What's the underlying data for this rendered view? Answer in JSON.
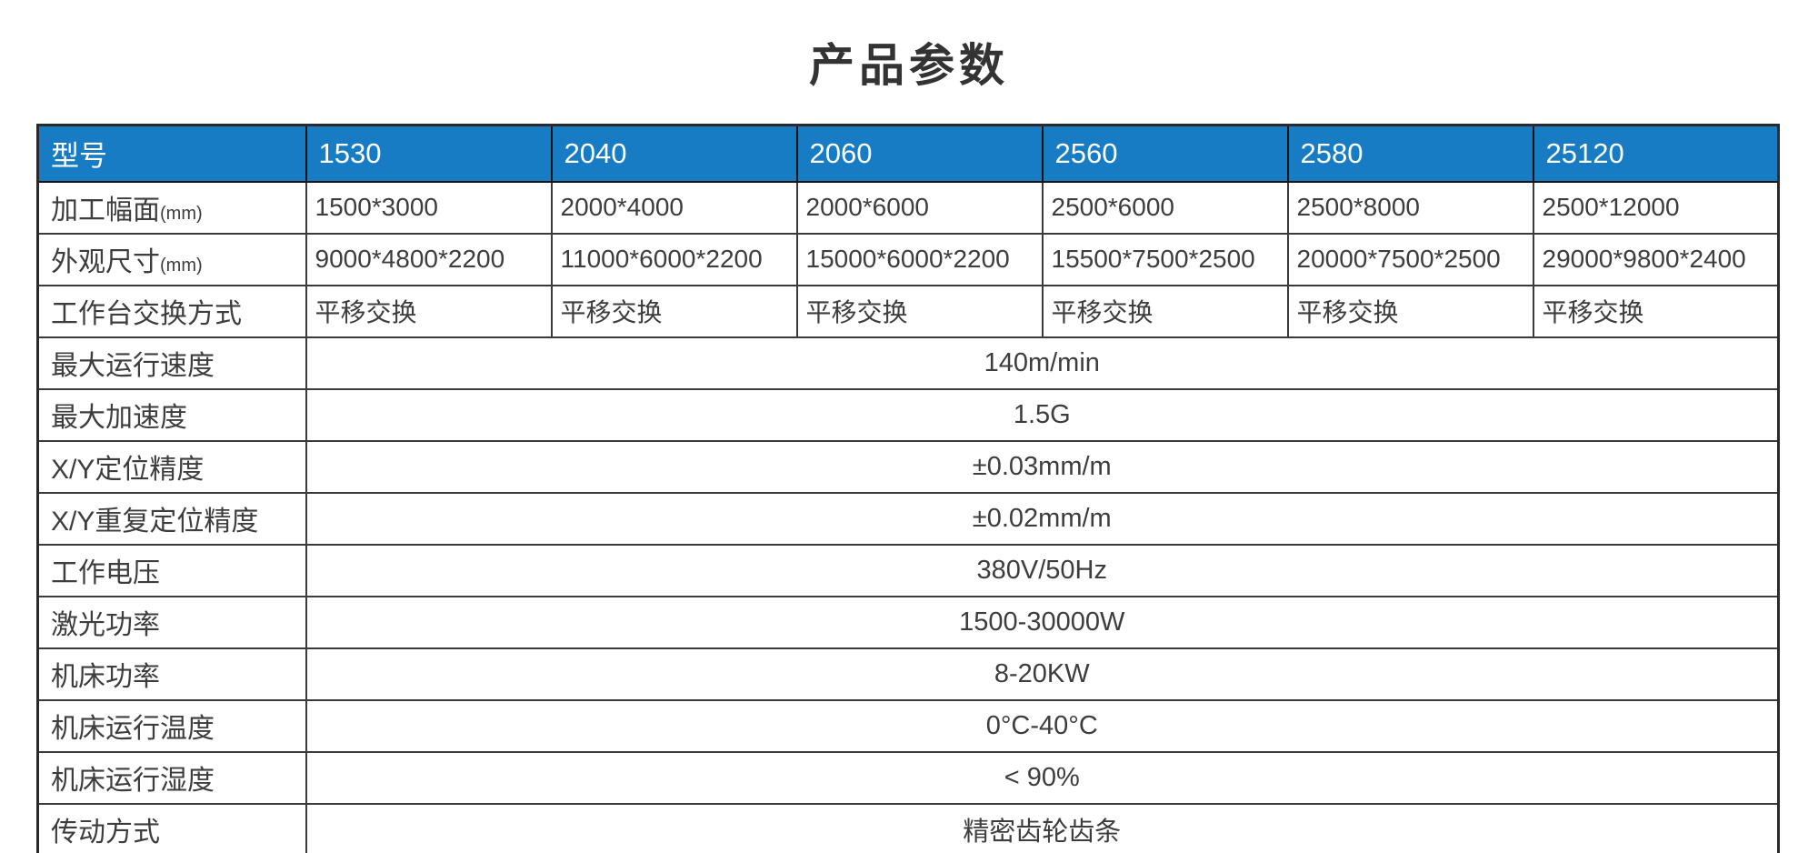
{
  "page": {
    "title": "产品参数"
  },
  "table": {
    "header": {
      "label": "型号",
      "models": [
        "1530",
        "2040",
        "2060",
        "2560",
        "2580",
        "25120"
      ]
    },
    "per_model_rows": [
      {
        "label": "加工幅面",
        "unit": "(mm)",
        "values": [
          "1500*3000",
          "2000*4000",
          "2000*6000",
          "2500*6000",
          "2500*8000",
          "2500*12000"
        ]
      },
      {
        "label": "外观尺寸",
        "unit": "(mm)",
        "values": [
          "9000*4800*2200",
          "11000*6000*2200",
          "15000*6000*2200",
          "15500*7500*2500",
          "20000*7500*2500",
          "29000*9800*2400"
        ]
      },
      {
        "label": "工作台交换方式",
        "unit": "",
        "values": [
          "平移交换",
          "平移交换",
          "平移交换",
          "平移交换",
          "平移交换",
          "平移交换"
        ]
      }
    ],
    "span_rows": [
      {
        "label": "最大运行速度",
        "value": "140m/min"
      },
      {
        "label": "最大加速度",
        "value": "1.5G"
      },
      {
        "label": "X/Y定位精度",
        "value": "±0.03mm/m"
      },
      {
        "label": "X/Y重复定位精度",
        "value": "±0.02mm/m"
      },
      {
        "label": "工作电压",
        "value": "380V/50Hz"
      },
      {
        "label": "激光功率",
        "value": "1500-30000W"
      },
      {
        "label": "机床功率",
        "value": "8-20KW"
      },
      {
        "label": "机床运行温度",
        "value": "0°C-40°C"
      },
      {
        "label": "机床运行湿度",
        "value": "< 90%"
      },
      {
        "label": "传动方式",
        "value": "精密齿轮齿条"
      }
    ],
    "colors": {
      "header_bg": "#187cc4",
      "header_text": "#ffffff",
      "border": "#3b3b3b",
      "body_text": "#3d3d3d"
    }
  }
}
